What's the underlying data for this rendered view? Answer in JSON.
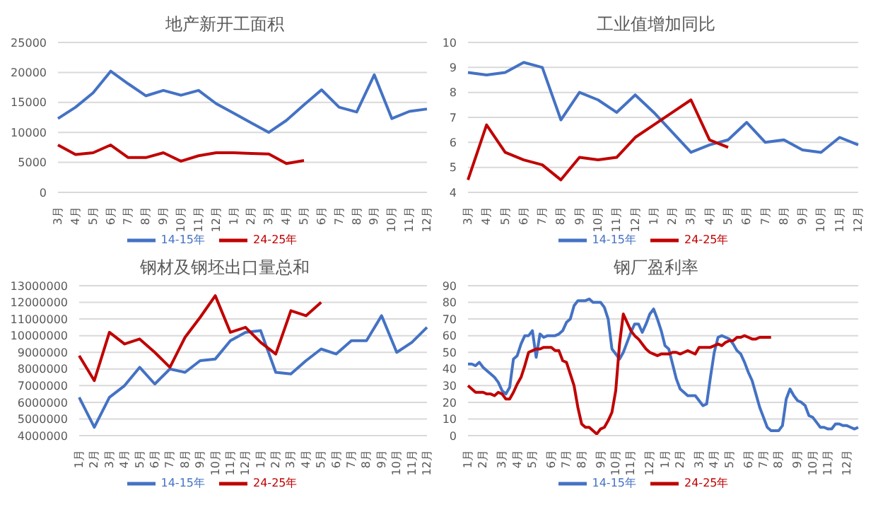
{
  "chart_data": [
    {
      "type": "line",
      "title": "地产新开工面积",
      "categories": [
        "3月",
        "4月",
        "5月",
        "6月",
        "7月",
        "8月",
        "9月",
        "10月",
        "11月",
        "12月",
        "1月",
        "2月",
        "3月",
        "4月",
        "5月",
        "6月",
        "7月",
        "8月",
        "9月",
        "10月",
        "11月",
        "12月"
      ],
      "ylim": [
        0,
        25000
      ],
      "yticks": [
        0,
        5000,
        10000,
        15000,
        20000,
        25000
      ],
      "grid": "y",
      "legend": "bottom",
      "series": [
        {
          "name": "14-15年",
          "color": "#4472c4",
          "values": [
            12300,
            14200,
            16600,
            20200,
            18100,
            16100,
            17000,
            16200,
            17000,
            14800,
            13200,
            11600,
            10000,
            12000,
            14600,
            17100,
            14200,
            13400,
            19600,
            12300,
            13500,
            13900
          ]
        },
        {
          "name": "24-25年",
          "color": "#c00000",
          "values": [
            7900,
            6300,
            6600,
            7900,
            5800,
            5800,
            6600,
            5200,
            6100,
            6600,
            6600,
            6500,
            6400,
            4800,
            5300,
            null,
            null,
            null,
            null,
            null,
            null,
            null
          ]
        }
      ]
    },
    {
      "type": "line",
      "title": "工业值增加同比",
      "categories": [
        "3月",
        "4月",
        "5月",
        "6月",
        "7月",
        "8月",
        "9月",
        "10月",
        "11月",
        "12月",
        "1月",
        "2月",
        "3月",
        "4月",
        "5月",
        "6月",
        "7月",
        "8月",
        "9月",
        "10月",
        "11月",
        "12月"
      ],
      "ylim": [
        4,
        10
      ],
      "yticks": [
        4,
        5,
        6,
        7,
        8,
        9,
        10
      ],
      "grid": "y",
      "legend": "bottom",
      "series": [
        {
          "name": "14-15年",
          "color": "#4472c4",
          "values": [
            8.8,
            8.7,
            8.8,
            9.2,
            9.0,
            6.9,
            8.0,
            7.7,
            7.2,
            7.9,
            7.2,
            6.4,
            5.6,
            5.9,
            6.1,
            6.8,
            6.0,
            6.1,
            5.7,
            5.6,
            6.2,
            5.9
          ]
        },
        {
          "name": "24-25年",
          "color": "#c00000",
          "values": [
            4.5,
            6.7,
            5.6,
            5.3,
            5.1,
            4.5,
            5.4,
            5.3,
            5.4,
            6.2,
            6.7,
            7.2,
            7.7,
            6.1,
            5.8,
            null,
            null,
            null,
            null,
            null,
            null,
            null
          ]
        }
      ]
    },
    {
      "type": "line",
      "title": "钢材及钢坯出口量总和",
      "categories": [
        "1月",
        "2月",
        "3月",
        "4月",
        "5月",
        "6月",
        "7月",
        "8月",
        "9月",
        "10月",
        "11月",
        "12月",
        "1月",
        "2月",
        "3月",
        "4月",
        "5月",
        "6月",
        "7月",
        "8月",
        "9月",
        "10月",
        "11月",
        "12月"
      ],
      "ylim": [
        4000000,
        13000000
      ],
      "yticks": [
        4000000,
        5000000,
        6000000,
        7000000,
        8000000,
        9000000,
        10000000,
        11000000,
        12000000,
        13000000
      ],
      "grid": "y",
      "legend": "bottom",
      "series": [
        {
          "name": "14-15年",
          "color": "#4472c4",
          "values": [
            6300000,
            4500000,
            6300000,
            7000000,
            8100000,
            7100000,
            8000000,
            7800000,
            8500000,
            8600000,
            9700000,
            10200000,
            10300000,
            7800000,
            7700000,
            8500000,
            9200000,
            8900000,
            9700000,
            9700000,
            11200000,
            9000000,
            9600000,
            10500000
          ]
        },
        {
          "name": "24-25年",
          "color": "#c00000",
          "values": [
            8800000,
            7300000,
            10200000,
            9500000,
            9800000,
            9000000,
            8100000,
            9900000,
            11100000,
            12400000,
            10200000,
            10500000,
            9600000,
            8900000,
            11500000,
            11200000,
            12000000,
            null,
            null,
            null,
            null,
            null,
            null,
            null
          ]
        }
      ]
    },
    {
      "type": "line",
      "title": "钢厂盈利率",
      "categories": [
        "1月",
        null,
        null,
        null,
        "2月",
        null,
        null,
        null,
        null,
        "3月",
        null,
        null,
        null,
        "4月",
        null,
        null,
        null,
        "5月",
        null,
        null,
        null,
        null,
        "6月",
        null,
        null,
        null,
        "7月",
        null,
        null,
        null,
        "8月",
        null,
        null,
        null,
        null,
        "9月",
        null,
        null,
        null,
        "10月",
        null,
        null,
        null,
        "11月",
        null,
        null,
        null,
        null,
        "12月",
        null,
        null,
        null,
        "1月",
        null,
        null,
        null,
        "2月",
        null,
        null,
        null,
        null,
        "3月",
        null,
        null,
        null,
        "4月",
        null,
        null,
        null,
        "5月",
        null,
        null,
        null,
        null,
        "6月",
        null,
        null,
        null,
        "7月",
        null,
        null,
        null,
        "8月",
        null,
        null,
        null,
        null,
        "9月",
        null,
        null,
        null,
        "10月",
        null,
        null,
        null,
        "11月",
        null,
        null,
        null,
        null,
        "12月",
        null,
        null,
        null
      ],
      "ylim": [
        0,
        90
      ],
      "yticks": [
        0,
        10,
        20,
        30,
        40,
        50,
        60,
        70,
        80,
        90
      ],
      "grid": "y",
      "legend": "bottom",
      "series": [
        {
          "name": "14-15年",
          "color": "#4472c4",
          "values": [
            43,
            43,
            42,
            44,
            41,
            39,
            37,
            35,
            32,
            27,
            25,
            29,
            46,
            48,
            55,
            60,
            60,
            63,
            47,
            61,
            59,
            60,
            60,
            60,
            61,
            63,
            68,
            70,
            78,
            81,
            81,
            81,
            82,
            80,
            80,
            80,
            77,
            70,
            52,
            49,
            46,
            50,
            56,
            62,
            67,
            67,
            62,
            67,
            73,
            76,
            70,
            63,
            54,
            52,
            43,
            34,
            28,
            26,
            24,
            24,
            24,
            21,
            18,
            19,
            35,
            50,
            59,
            60,
            59,
            58,
            55,
            51,
            49,
            44,
            38,
            33,
            25,
            17,
            11,
            5,
            3,
            3,
            3,
            6,
            22,
            28,
            24,
            21,
            20,
            18,
            12,
            11,
            8,
            5,
            5,
            4,
            4,
            7,
            7,
            6,
            6,
            5,
            4,
            5
          ]
        },
        {
          "name": "24-25年",
          "color": "#c00000",
          "values": [
            30,
            28,
            26,
            26,
            26,
            25,
            25,
            24,
            26,
            25,
            22,
            22,
            26,
            31,
            35,
            42,
            50,
            51,
            52,
            52,
            53,
            53,
            53,
            51,
            51,
            45,
            44,
            37,
            30,
            17,
            7,
            5,
            5,
            3,
            1,
            4,
            5,
            9,
            14,
            27,
            55,
            73,
            68,
            63,
            60,
            58,
            55,
            52,
            50,
            49,
            48,
            49,
            49,
            49,
            50,
            50,
            49,
            50,
            51,
            50,
            49,
            53,
            53,
            53,
            53,
            54,
            55,
            54,
            56,
            57,
            57,
            59,
            59,
            60,
            59,
            58,
            58,
            59,
            59,
            59,
            59,
            null,
            null,
            null,
            null,
            null,
            null,
            null,
            null,
            null,
            null,
            null,
            null,
            null,
            null,
            null,
            null,
            null,
            null,
            null,
            null,
            null,
            null,
            null
          ]
        }
      ]
    }
  ]
}
